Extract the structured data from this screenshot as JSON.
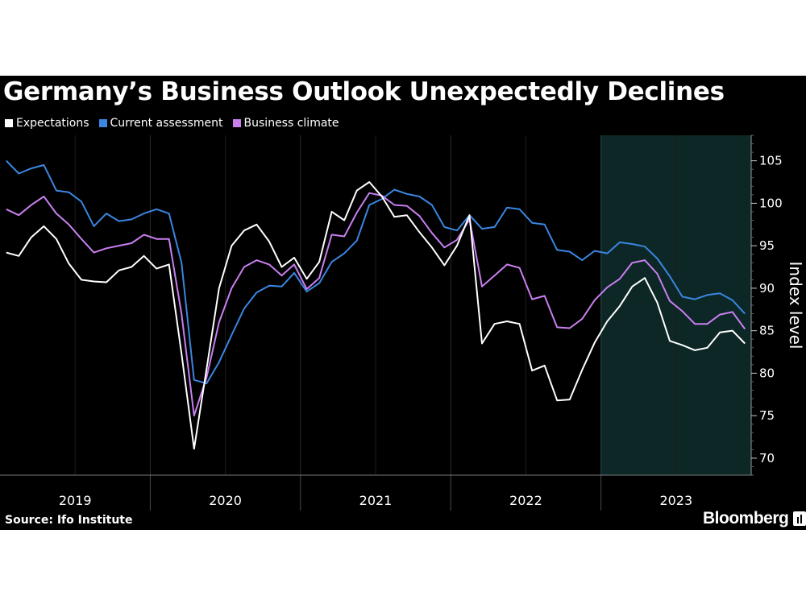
{
  "title": "Germany’s Business Outlook Unexpectedly Declines",
  "source": "Source: Ifo Institute",
  "brand": "Bloomberg",
  "brand_icon": "bloomberg-terminal-icon",
  "colors": {
    "background": "#000000",
    "expectations": "#ffffff",
    "current": "#3a86e0",
    "climate": "#c97ff0",
    "highlight": "#0c2726",
    "highlight_edge": "#2fb6b0"
  },
  "legend": [
    {
      "name": "Expectations",
      "color": "#ffffff"
    },
    {
      "name": "Current assessment",
      "color": "#3a86e0"
    },
    {
      "name": "Business climate",
      "color": "#c97ff0"
    }
  ],
  "chart_data": {
    "type": "line",
    "xlabel": "",
    "ylabel": "Index level",
    "ylim": [
      68,
      108
    ],
    "yticks": [
      70,
      75,
      80,
      85,
      90,
      95,
      100,
      105
    ],
    "x_years": [
      "2019",
      "2020",
      "2021",
      "2022",
      "2023"
    ],
    "x_start": "2019-01",
    "x_end": "2023-12",
    "grid": "vertical",
    "legend_position": "top-left",
    "highlight": {
      "from": "2023-01",
      "to": "2023-12"
    },
    "x": [
      "2019-01",
      "2019-02",
      "2019-03",
      "2019-04",
      "2019-05",
      "2019-06",
      "2019-07",
      "2019-08",
      "2019-09",
      "2019-10",
      "2019-11",
      "2019-12",
      "2020-01",
      "2020-02",
      "2020-03",
      "2020-04",
      "2020-05",
      "2020-06",
      "2020-07",
      "2020-08",
      "2020-09",
      "2020-10",
      "2020-11",
      "2020-12",
      "2021-01",
      "2021-02",
      "2021-03",
      "2021-04",
      "2021-05",
      "2021-06",
      "2021-07",
      "2021-08",
      "2021-09",
      "2021-10",
      "2021-11",
      "2021-12",
      "2022-01",
      "2022-02",
      "2022-03",
      "2022-04",
      "2022-05",
      "2022-06",
      "2022-07",
      "2022-08",
      "2022-09",
      "2022-10",
      "2022-11",
      "2022-12",
      "2023-01",
      "2023-02",
      "2023-03",
      "2023-04",
      "2023-05",
      "2023-06",
      "2023-07",
      "2023-08",
      "2023-09",
      "2023-10",
      "2023-11",
      "2023-12"
    ],
    "series": [
      {
        "name": "Current assessment",
        "color": "#3a86e0",
        "values": [
          105.0,
          103.5,
          104.1,
          104.5,
          101.5,
          101.3,
          100.2,
          97.3,
          98.8,
          97.9,
          98.1,
          98.8,
          99.3,
          98.8,
          93.0,
          79.2,
          78.8,
          81.3,
          84.5,
          87.6,
          89.5,
          90.3,
          90.2,
          91.8,
          89.6,
          90.6,
          93.1,
          94.1,
          95.6,
          99.8,
          100.5,
          101.6,
          101.1,
          100.8,
          99.8,
          97.2,
          96.8,
          98.6,
          97.0,
          97.2,
          99.5,
          99.3,
          97.7,
          97.5,
          94.5,
          94.3,
          93.3,
          94.4,
          94.1,
          95.4,
          95.2,
          94.9,
          93.5,
          91.4,
          89.0,
          88.7,
          89.2,
          89.4,
          88.6,
          87.0
        ]
      },
      {
        "name": "Business climate",
        "color": "#c97ff0",
        "values": [
          99.3,
          98.6,
          99.8,
          100.8,
          98.8,
          97.5,
          95.8,
          94.2,
          94.7,
          95.0,
          95.3,
          96.3,
          95.8,
          95.8,
          87.0,
          75.0,
          79.5,
          86.0,
          90.0,
          92.5,
          93.3,
          92.8,
          91.5,
          92.8,
          89.9,
          91.2,
          96.3,
          96.1,
          98.9,
          101.2,
          100.9,
          99.8,
          99.7,
          98.5,
          96.5,
          94.8,
          95.7,
          98.1,
          90.2,
          91.5,
          92.8,
          92.4,
          88.7,
          89.1,
          85.4,
          85.3,
          86.4,
          88.6,
          90.1,
          91.1,
          93.0,
          93.3,
          91.7,
          88.5,
          87.3,
          85.8,
          85.8,
          86.9,
          87.2,
          85.2
        ]
      },
      {
        "name": "Expectations",
        "color": "#ffffff",
        "values": [
          94.2,
          93.8,
          96.0,
          97.3,
          95.8,
          92.9,
          91.0,
          90.8,
          90.7,
          92.1,
          92.5,
          93.8,
          92.3,
          92.8,
          82.3,
          71.1,
          80.5,
          90.0,
          95.0,
          96.8,
          97.5,
          95.5,
          92.5,
          93.6,
          91.1,
          93.1,
          99.0,
          98.0,
          101.5,
          102.5,
          100.8,
          98.4,
          98.6,
          96.6,
          94.8,
          92.7,
          95.0,
          98.6,
          83.5,
          85.8,
          86.1,
          85.8,
          80.3,
          80.9,
          76.8,
          76.9,
          80.4,
          83.6,
          86.1,
          87.9,
          90.2,
          91.2,
          88.3,
          83.8,
          83.3,
          82.7,
          83.0,
          84.8,
          85.0,
          83.5
        ]
      }
    ]
  }
}
